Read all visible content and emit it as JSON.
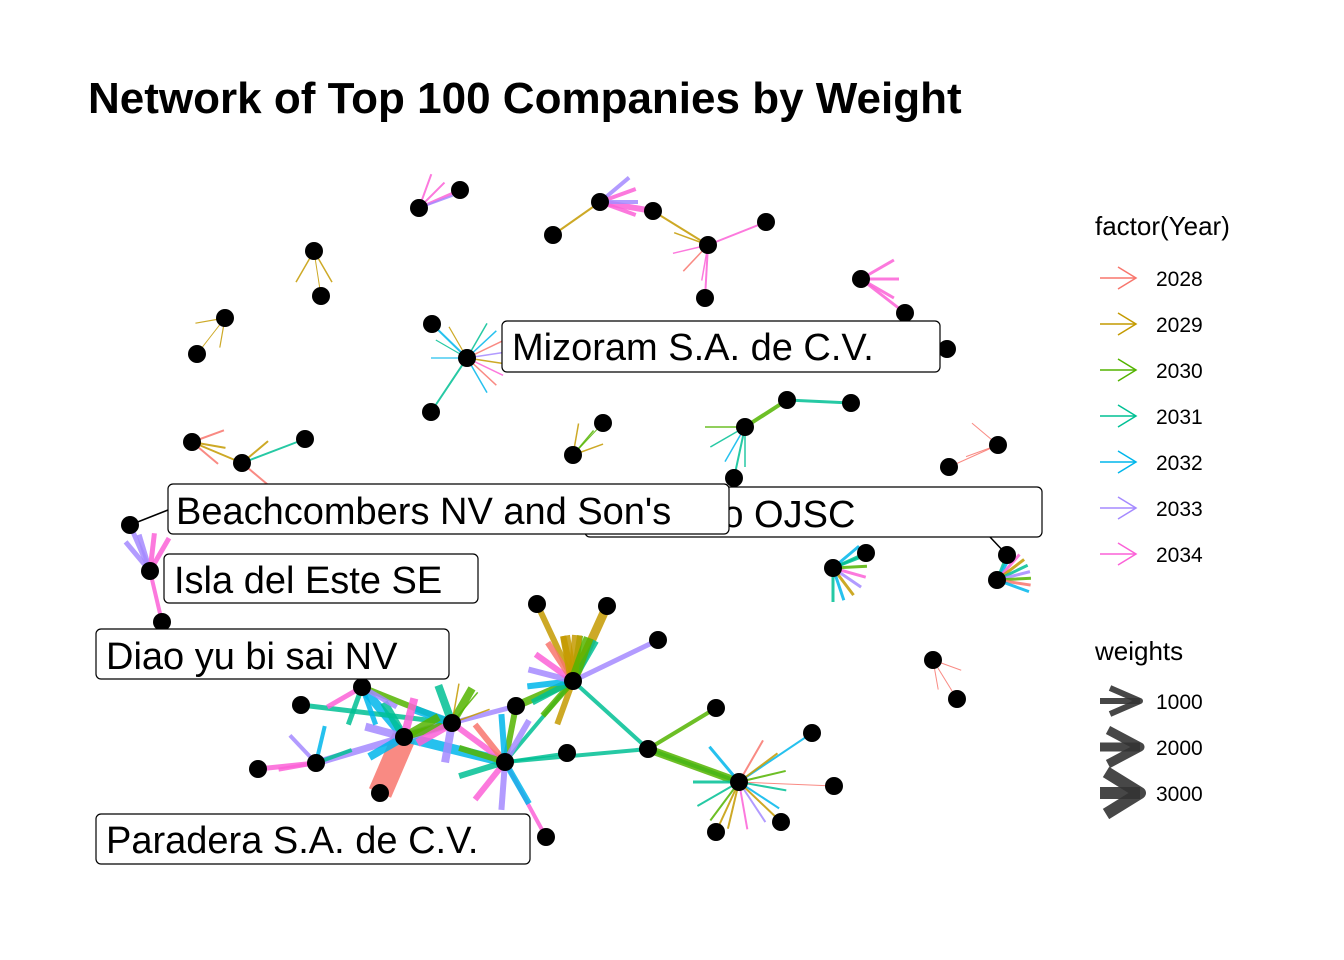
{
  "title": "Network of Top 100 Companies by Weight",
  "legend": {
    "year": {
      "title": "factor(Year)",
      "items": [
        {
          "label": "2028",
          "color": "#F8766D"
        },
        {
          "label": "2029",
          "color": "#C49A00"
        },
        {
          "label": "2030",
          "color": "#53B400"
        },
        {
          "label": "2031",
          "color": "#00C094"
        },
        {
          "label": "2032",
          "color": "#00B6EB"
        },
        {
          "label": "2033",
          "color": "#A58AFF"
        },
        {
          "label": "2034",
          "color": "#FB61D7"
        }
      ]
    },
    "weights": {
      "title": "weights",
      "items": [
        {
          "label": "1000",
          "value": 1000
        },
        {
          "label": "2000",
          "value": 2000
        },
        {
          "label": "3000",
          "value": 3000
        }
      ]
    }
  },
  "node_labels": [
    "Mizoram  S.A. de C.V.",
    "el Tesoro OJSC",
    "Beachcombers NV and Son's",
    "Isla del Este SE",
    "Diao yu bi sai  NV",
    "Paradera S.A. de C.V."
  ]
}
